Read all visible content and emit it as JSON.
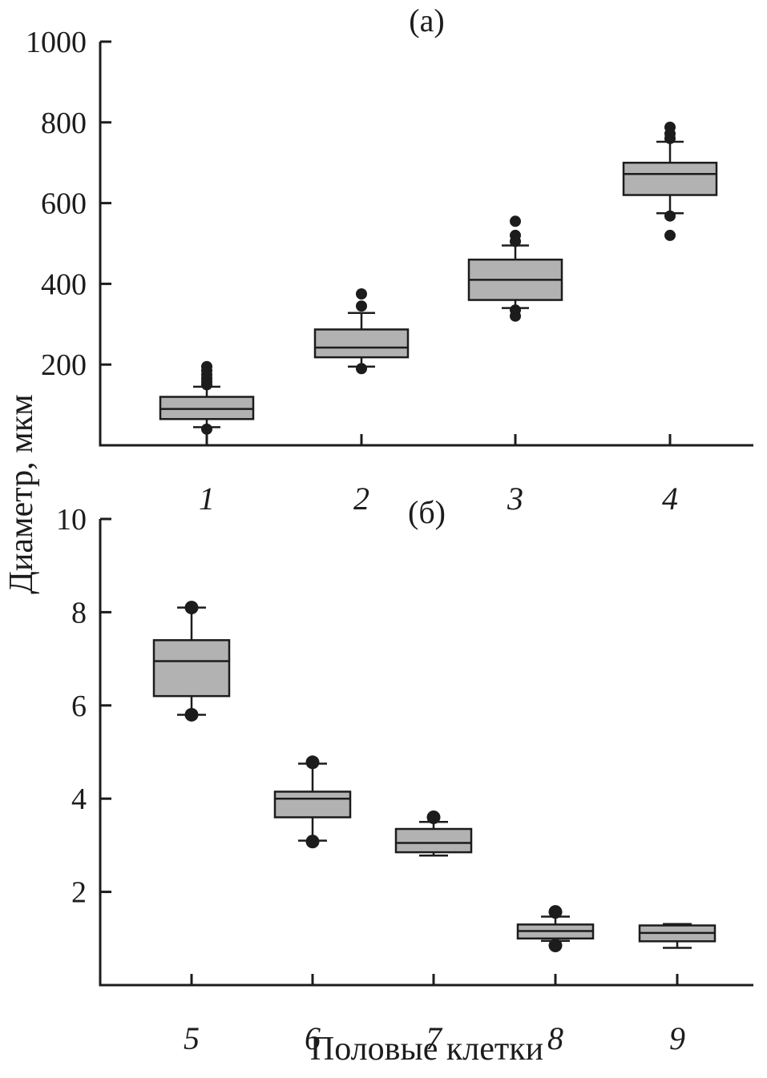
{
  "figure": {
    "ylabel": "Диаметр, мкм",
    "xlabel": "Половые клетки",
    "colors": {
      "box_fill": "#b2b2b2",
      "line": "#1c1c1c",
      "background": "#ffffff"
    }
  },
  "chart_data": [
    {
      "type": "boxplot",
      "title": "(а)",
      "panel": "top",
      "categories": [
        "1",
        "2",
        "3",
        "4"
      ],
      "ylim": [
        0,
        1000
      ],
      "yticks": [
        200,
        400,
        600,
        800,
        1000
      ],
      "grid": false,
      "series": [
        {
          "category": "1",
          "whisker_low": 45,
          "q1": 65,
          "median": 90,
          "q3": 120,
          "whisker_high": 145,
          "outliers_high": [
            150,
            158,
            166,
            175,
            185,
            195
          ],
          "outliers_low": [
            40
          ]
        },
        {
          "category": "2",
          "whisker_low": 195,
          "q1": 218,
          "median": 242,
          "q3": 287,
          "whisker_high": 328,
          "outliers_high": [
            345,
            375
          ],
          "outliers_low": [
            190
          ]
        },
        {
          "category": "3",
          "whisker_low": 340,
          "q1": 360,
          "median": 410,
          "q3": 460,
          "whisker_high": 495,
          "outliers_high": [
            505,
            520,
            555
          ],
          "outliers_low": [
            335,
            320
          ]
        },
        {
          "category": "4",
          "whisker_low": 575,
          "q1": 620,
          "median": 672,
          "q3": 700,
          "whisker_high": 752,
          "outliers_high": [
            760,
            772,
            788
          ],
          "outliers_low": [
            568,
            520
          ]
        }
      ]
    },
    {
      "type": "boxplot",
      "title": "(б)",
      "panel": "bottom",
      "categories": [
        "5",
        "6",
        "7",
        "8",
        "9"
      ],
      "ylim": [
        0,
        10
      ],
      "yticks": [
        2,
        4,
        6,
        8,
        10
      ],
      "grid": false,
      "series": [
        {
          "category": "5",
          "whisker_low": 5.8,
          "q1": 6.2,
          "median": 6.95,
          "q3": 7.4,
          "whisker_high": 8.1,
          "outliers_high": [
            8.1
          ],
          "outliers_low": [
            5.8
          ]
        },
        {
          "category": "6",
          "whisker_low": 3.1,
          "q1": 3.6,
          "median": 4.0,
          "q3": 4.15,
          "whisker_high": 4.75,
          "outliers_high": [
            4.78
          ],
          "outliers_low": [
            3.08
          ]
        },
        {
          "category": "7",
          "whisker_low": 2.78,
          "q1": 2.85,
          "median": 3.05,
          "q3": 3.35,
          "whisker_high": 3.5,
          "outliers_high": [
            3.6
          ],
          "outliers_low": []
        },
        {
          "category": "8",
          "whisker_low": 0.95,
          "q1": 1.0,
          "median": 1.16,
          "q3": 1.3,
          "whisker_high": 1.47,
          "outliers_high": [
            1.57
          ],
          "outliers_low": [
            0.85
          ]
        },
        {
          "category": "9",
          "whisker_low": 0.8,
          "q1": 0.94,
          "median": 1.12,
          "q3": 1.28,
          "whisker_high": 1.31,
          "outliers_high": [],
          "outliers_low": []
        }
      ]
    }
  ]
}
